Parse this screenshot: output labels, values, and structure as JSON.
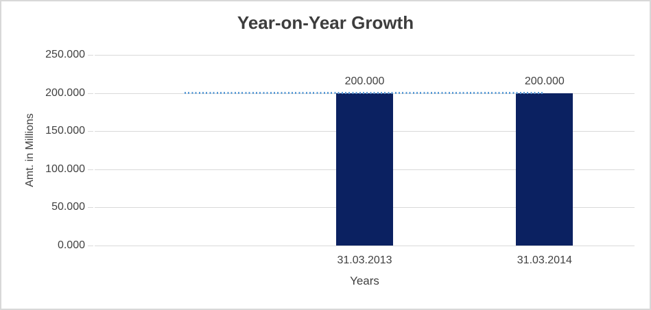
{
  "chart_data": {
    "type": "bar",
    "title": "Year-on-Year Growth",
    "x_axis": {
      "title": "Years",
      "tick_labels": [
        "",
        "31.03.2013",
        "31.03.2014"
      ]
    },
    "y_axis": {
      "title": "Amt. in Millions",
      "min": 0,
      "max": 250,
      "step": 50,
      "tick_labels_top_to_bottom": [
        "250.000",
        "200.000",
        "150.000",
        "100.000",
        "50.000",
        "0.000"
      ]
    },
    "categories": [
      "",
      "31.03.2013",
      "31.03.2014"
    ],
    "series": [
      {
        "name": "amount-bars",
        "type": "bar",
        "color": "#0b2161",
        "values": [
          null,
          200,
          200
        ],
        "data_labels": [
          null,
          "200.000",
          "200.000"
        ]
      },
      {
        "name": "reference-line",
        "type": "line",
        "line_style": "dotted",
        "color": "#5b9bd5",
        "values": [
          200,
          200,
          200
        ]
      }
    ],
    "gridlines": {
      "show": true,
      "color": "#d9d9d9"
    },
    "legend": "none",
    "ylim": [
      0,
      250
    ]
  },
  "style": {
    "background": "#ffffff",
    "frame_border": "#d8d8d8",
    "text_color": "#404040",
    "title_color": "#3d3d3d"
  }
}
